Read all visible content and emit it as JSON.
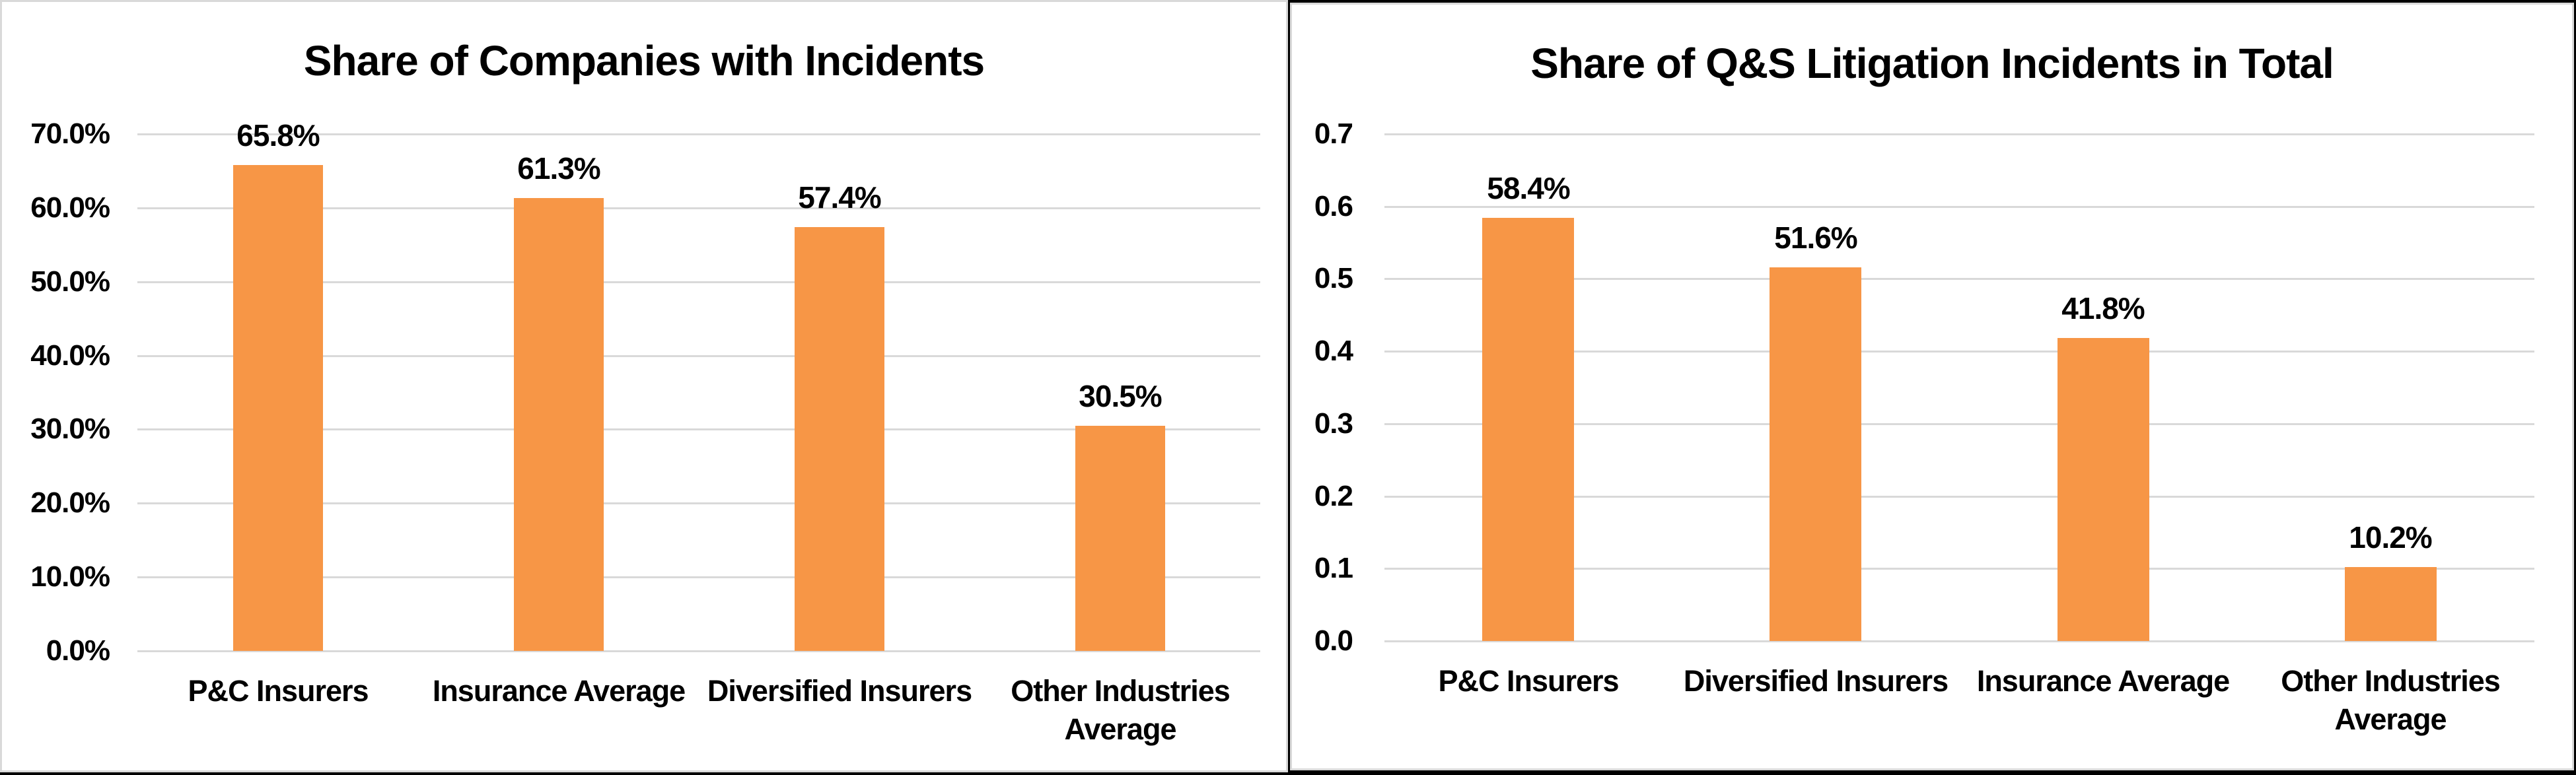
{
  "page": {
    "background_color": "#000000",
    "panel_background": "#ffffff",
    "panel_border_color": "#d9d9d9",
    "text_color": "#000000",
    "gridline_color": "#d9d9d9"
  },
  "chart_data": [
    {
      "type": "bar",
      "title": "Share of Companies with Incidents",
      "categories": [
        "P&C Insurers",
        "Insurance Average",
        "Diversified Insurers",
        "Other Industries Average"
      ],
      "values": [
        0.658,
        0.613,
        0.574,
        0.305
      ],
      "data_labels": [
        "65.8%",
        "61.3%",
        "57.4%",
        "30.5%"
      ],
      "xlabel": "",
      "ylabel": "",
      "ylim": [
        0,
        0.7
      ],
      "y_ticks_bottom_to_top": [
        "0.0%",
        "10.0%",
        "20.0%",
        "30.0%",
        "40.0%",
        "50.0%",
        "60.0%",
        "70.0%"
      ],
      "grid": true,
      "legend": "none",
      "bar_color": "#F79646"
    },
    {
      "type": "bar",
      "title": "Share of Q&S Litigation Incidents in Total",
      "categories": [
        "P&C Insurers",
        "Diversified Insurers",
        "Insurance Average",
        "Other Industries Average"
      ],
      "values": [
        0.584,
        0.516,
        0.418,
        0.102
      ],
      "data_labels": [
        "58.4%",
        "51.6%",
        "41.8%",
        "10.2%"
      ],
      "xlabel": "",
      "ylabel": "",
      "ylim": [
        0,
        0.7
      ],
      "y_ticks_bottom_to_top": [
        "0.0",
        "0.1",
        "0.2",
        "0.3",
        "0.4",
        "0.5",
        "0.6",
        "0.7"
      ],
      "grid": true,
      "legend": "none",
      "bar_color": "#F79646"
    }
  ]
}
